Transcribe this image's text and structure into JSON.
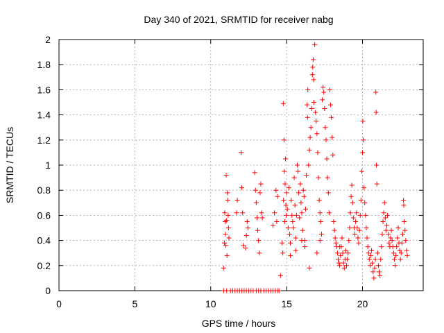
{
  "chart_data": {
    "type": "scatter",
    "title": "Day 340 of 2021, SRMTID for receiver nabg",
    "xlabel": "GPS time / hours",
    "ylabel": "SRMTID / TECUs",
    "xlim": [
      0,
      24
    ],
    "ylim": [
      0,
      2
    ],
    "grid": true,
    "marker": "+",
    "color": "#ff0000",
    "x_ticks": [
      0,
      5,
      10,
      15,
      20
    ],
    "x_tick_labels": [
      "0",
      "5",
      "10",
      "15",
      "20"
    ],
    "y_ticks": [
      0,
      0.2,
      0.4,
      0.6,
      0.8,
      1,
      1.2,
      1.4,
      1.6,
      1.8,
      2
    ],
    "y_tick_labels": [
      "0",
      "0.2",
      "0.4",
      "0.6",
      "0.8",
      "1",
      "1.2",
      "1.4",
      "1.6",
      "1.8",
      "2"
    ],
    "series": [
      {
        "name": "SRMTID",
        "points": [
          [
            10.85,
            0.18
          ],
          [
            10.9,
            0.38
          ],
          [
            10.92,
            0.62
          ],
          [
            10.95,
            0.55
          ],
          [
            10.97,
            0.45
          ],
          [
            11.0,
            0.36
          ],
          [
            11.02,
            0.92
          ],
          [
            11.05,
            0.56
          ],
          [
            11.07,
            0.28
          ],
          [
            11.1,
            0.78
          ],
          [
            11.12,
            0.72
          ],
          [
            11.15,
            0.6
          ],
          [
            11.17,
            0.5
          ],
          [
            11.2,
            0.42
          ],
          [
            11.7,
            0.62
          ],
          [
            11.75,
            0.72
          ],
          [
            12.0,
            1.1
          ],
          [
            12.05,
            0.82
          ],
          [
            12.1,
            0.62
          ],
          [
            12.15,
            0.36
          ],
          [
            12.3,
            0.34
          ],
          [
            12.35,
            0.44
          ],
          [
            12.4,
            0.55
          ],
          [
            12.45,
            0.5
          ],
          [
            12.9,
            0.94
          ],
          [
            12.95,
            0.8
          ],
          [
            13.0,
            0.7
          ],
          [
            13.05,
            0.58
          ],
          [
            13.1,
            0.48
          ],
          [
            13.15,
            0.4
          ],
          [
            13.2,
            0.3
          ],
          [
            13.25,
            0.78
          ],
          [
            13.3,
            0.85
          ],
          [
            13.35,
            0.62
          ],
          [
            13.4,
            0.58
          ],
          [
            14.1,
            0.52
          ],
          [
            14.2,
            0.62
          ],
          [
            14.3,
            0.8
          ],
          [
            14.35,
            0.55
          ],
          [
            14.4,
            0.75
          ],
          [
            14.75,
            0.3
          ],
          [
            14.78,
            1.49
          ],
          [
            14.8,
            0.72
          ],
          [
            14.83,
            1.2
          ],
          [
            14.85,
            0.95
          ],
          [
            14.88,
            0.55
          ],
          [
            14.9,
            0.85
          ],
          [
            14.93,
            1.05
          ],
          [
            14.95,
            0.68
          ],
          [
            14.98,
            0.6
          ],
          [
            15.0,
            0.78
          ],
          [
            15.05,
            0.65
          ],
          [
            15.1,
            0.5
          ],
          [
            15.15,
            0.82
          ],
          [
            15.2,
            0.45
          ],
          [
            15.25,
            0.38
          ],
          [
            15.3,
            0.72
          ],
          [
            15.35,
            0.6
          ],
          [
            15.4,
            0.55
          ],
          [
            15.45,
            0.5
          ],
          [
            15.5,
            0.9
          ],
          [
            15.55,
            0.68
          ],
          [
            15.6,
            0.42
          ],
          [
            15.65,
            0.6
          ],
          [
            15.7,
            1.0
          ],
          [
            15.75,
            0.95
          ],
          [
            15.8,
            0.78
          ],
          [
            15.85,
            0.58
          ],
          [
            15.9,
            0.85
          ],
          [
            15.95,
            0.7
          ],
          [
            16.0,
            0.62
          ],
          [
            16.05,
            0.48
          ],
          [
            16.1,
            0.8
          ],
          [
            16.15,
            0.75
          ],
          [
            16.2,
            0.4
          ],
          [
            16.25,
            0.65
          ],
          [
            16.3,
            0.92
          ],
          [
            16.35,
            1.48
          ],
          [
            16.38,
            1.38
          ],
          [
            16.4,
            1.6
          ],
          [
            16.45,
            1.0
          ],
          [
            16.5,
            1.12
          ],
          [
            16.55,
            1.22
          ],
          [
            16.6,
            1.3
          ],
          [
            16.65,
            1.45
          ],
          [
            16.7,
            1.72
          ],
          [
            16.72,
            1.78
          ],
          [
            16.75,
            1.84
          ],
          [
            16.78,
            1.68
          ],
          [
            16.8,
            1.5
          ],
          [
            16.85,
            1.96
          ],
          [
            16.9,
            1.42
          ],
          [
            16.95,
            1.35
          ],
          [
            17.0,
            1.25
          ],
          [
            17.05,
            1.1
          ],
          [
            17.1,
            0.9
          ],
          [
            17.15,
            0.72
          ],
          [
            17.2,
            0.62
          ],
          [
            17.25,
            0.55
          ],
          [
            17.3,
            0.45
          ],
          [
            17.35,
            1.52
          ],
          [
            17.4,
            1.62
          ],
          [
            17.45,
            1.58
          ],
          [
            17.5,
            1.45
          ],
          [
            17.55,
            1.3
          ],
          [
            17.6,
            1.2
          ],
          [
            17.65,
            1.05
          ],
          [
            17.7,
            0.9
          ],
          [
            17.75,
            0.78
          ],
          [
            17.8,
            0.62
          ],
          [
            17.85,
            1.6
          ],
          [
            17.9,
            1.48
          ],
          [
            17.95,
            1.38
          ],
          [
            18.0,
            1.22
          ],
          [
            18.05,
            1.08
          ],
          [
            18.1,
            0.55
          ],
          [
            18.15,
            0.48
          ],
          [
            18.2,
            0.42
          ],
          [
            18.25,
            0.38
          ],
          [
            18.3,
            0.35
          ],
          [
            18.35,
            0.3
          ],
          [
            18.4,
            0.25
          ],
          [
            18.45,
            0.22
          ],
          [
            18.5,
            0.2
          ],
          [
            18.55,
            0.28
          ],
          [
            18.6,
            0.35
          ],
          [
            18.65,
            0.42
          ],
          [
            18.7,
            0.3
          ],
          [
            18.75,
            0.22
          ],
          [
            18.8,
            0.18
          ],
          [
            18.85,
            0.25
          ],
          [
            18.9,
            0.32
          ],
          [
            18.95,
            0.2
          ],
          [
            19.0,
            0.25
          ],
          [
            19.05,
            0.3
          ],
          [
            19.1,
            0.4
          ],
          [
            19.15,
            0.5
          ],
          [
            19.2,
            0.62
          ],
          [
            19.25,
            0.75
          ],
          [
            19.3,
            0.84
          ],
          [
            19.35,
            0.7
          ],
          [
            19.4,
            0.58
          ],
          [
            19.45,
            0.5
          ],
          [
            19.5,
            0.45
          ],
          [
            19.55,
            0.55
          ],
          [
            19.6,
            0.62
          ],
          [
            19.65,
            0.5
          ],
          [
            19.7,
            0.42
          ],
          [
            19.75,
            0.38
          ],
          [
            19.8,
            0.48
          ],
          [
            19.85,
            0.6
          ],
          [
            19.9,
            0.72
          ],
          [
            19.95,
            0.95
          ],
          [
            20.0,
            1.1
          ],
          [
            20.02,
            1.35
          ],
          [
            20.05,
            1.2
          ],
          [
            20.1,
            0.82
          ],
          [
            20.15,
            0.7
          ],
          [
            20.2,
            0.6
          ],
          [
            20.25,
            0.5
          ],
          [
            20.3,
            0.42
          ],
          [
            20.35,
            0.35
          ],
          [
            20.4,
            0.3
          ],
          [
            20.45,
            0.25
          ],
          [
            20.5,
            0.2
          ],
          [
            20.55,
            0.28
          ],
          [
            20.6,
            0.32
          ],
          [
            20.65,
            0.22
          ],
          [
            20.7,
            0.15
          ],
          [
            20.75,
            0.1
          ],
          [
            20.8,
            0.18
          ],
          [
            20.85,
            0.25
          ],
          [
            20.88,
            1.58
          ],
          [
            20.9,
            1.42
          ],
          [
            20.92,
            1.0
          ],
          [
            20.95,
            0.85
          ],
          [
            21.0,
            0.3
          ],
          [
            21.05,
            0.2
          ],
          [
            21.1,
            0.15
          ],
          [
            21.15,
            0.12
          ],
          [
            21.2,
            0.25
          ],
          [
            21.25,
            0.35
          ],
          [
            21.3,
            0.45
          ],
          [
            21.35,
            0.55
          ],
          [
            21.4,
            0.62
          ],
          [
            21.45,
            0.7
          ],
          [
            21.5,
            0.58
          ],
          [
            21.55,
            0.48
          ],
          [
            21.6,
            0.52
          ],
          [
            21.65,
            0.6
          ],
          [
            21.7,
            0.45
          ],
          [
            21.75,
            0.38
          ],
          [
            21.8,
            0.35
          ],
          [
            21.85,
            0.42
          ],
          [
            21.9,
            0.48
          ],
          [
            21.95,
            0.4
          ],
          [
            22.0,
            0.35
          ],
          [
            22.05,
            0.3
          ],
          [
            22.1,
            0.25
          ],
          [
            22.15,
            0.2
          ],
          [
            22.2,
            0.28
          ],
          [
            22.25,
            0.35
          ],
          [
            22.3,
            0.42
          ],
          [
            22.35,
            0.5
          ],
          [
            22.4,
            0.38
          ],
          [
            22.45,
            0.32
          ],
          [
            22.5,
            0.25
          ],
          [
            22.55,
            0.3
          ],
          [
            22.6,
            0.38
          ],
          [
            22.65,
            0.45
          ],
          [
            22.7,
            0.72
          ],
          [
            22.72,
            0.68
          ],
          [
            22.75,
            0.55
          ],
          [
            22.8,
            0.48
          ],
          [
            22.85,
            0.4
          ],
          [
            22.9,
            0.32
          ],
          [
            22.95,
            0.28
          ],
          [
            14.6,
            0.12
          ],
          [
            14.7,
            0.38
          ],
          [
            15.25,
            0.28
          ],
          [
            15.6,
            0.32
          ],
          [
            16.0,
            0.4
          ],
          [
            16.2,
            0.35
          ],
          [
            16.5,
            0.18
          ],
          [
            17.0,
            0.3
          ],
          [
            17.2,
            0.4
          ],
          [
            18.5,
            0.35
          ],
          [
            10.85,
            0.0
          ],
          [
            11.05,
            0.0
          ],
          [
            11.3,
            0.0
          ],
          [
            11.45,
            0.0
          ],
          [
            11.6,
            0.0
          ],
          [
            11.75,
            0.0
          ],
          [
            11.9,
            0.0
          ],
          [
            12.05,
            0.0
          ],
          [
            12.2,
            0.0
          ],
          [
            12.35,
            0.0
          ],
          [
            12.5,
            0.0
          ],
          [
            12.65,
            0.0
          ],
          [
            12.8,
            0.0
          ],
          [
            13.0,
            0.0
          ],
          [
            13.15,
            0.0
          ],
          [
            13.3,
            0.0
          ],
          [
            13.5,
            0.0
          ],
          [
            13.65,
            0.0
          ],
          [
            13.8,
            0.0
          ],
          [
            13.95,
            0.0
          ],
          [
            14.1,
            0.0
          ],
          [
            14.25,
            0.0
          ],
          [
            14.4,
            0.0
          ],
          [
            14.5,
            0.0
          ]
        ]
      }
    ]
  }
}
